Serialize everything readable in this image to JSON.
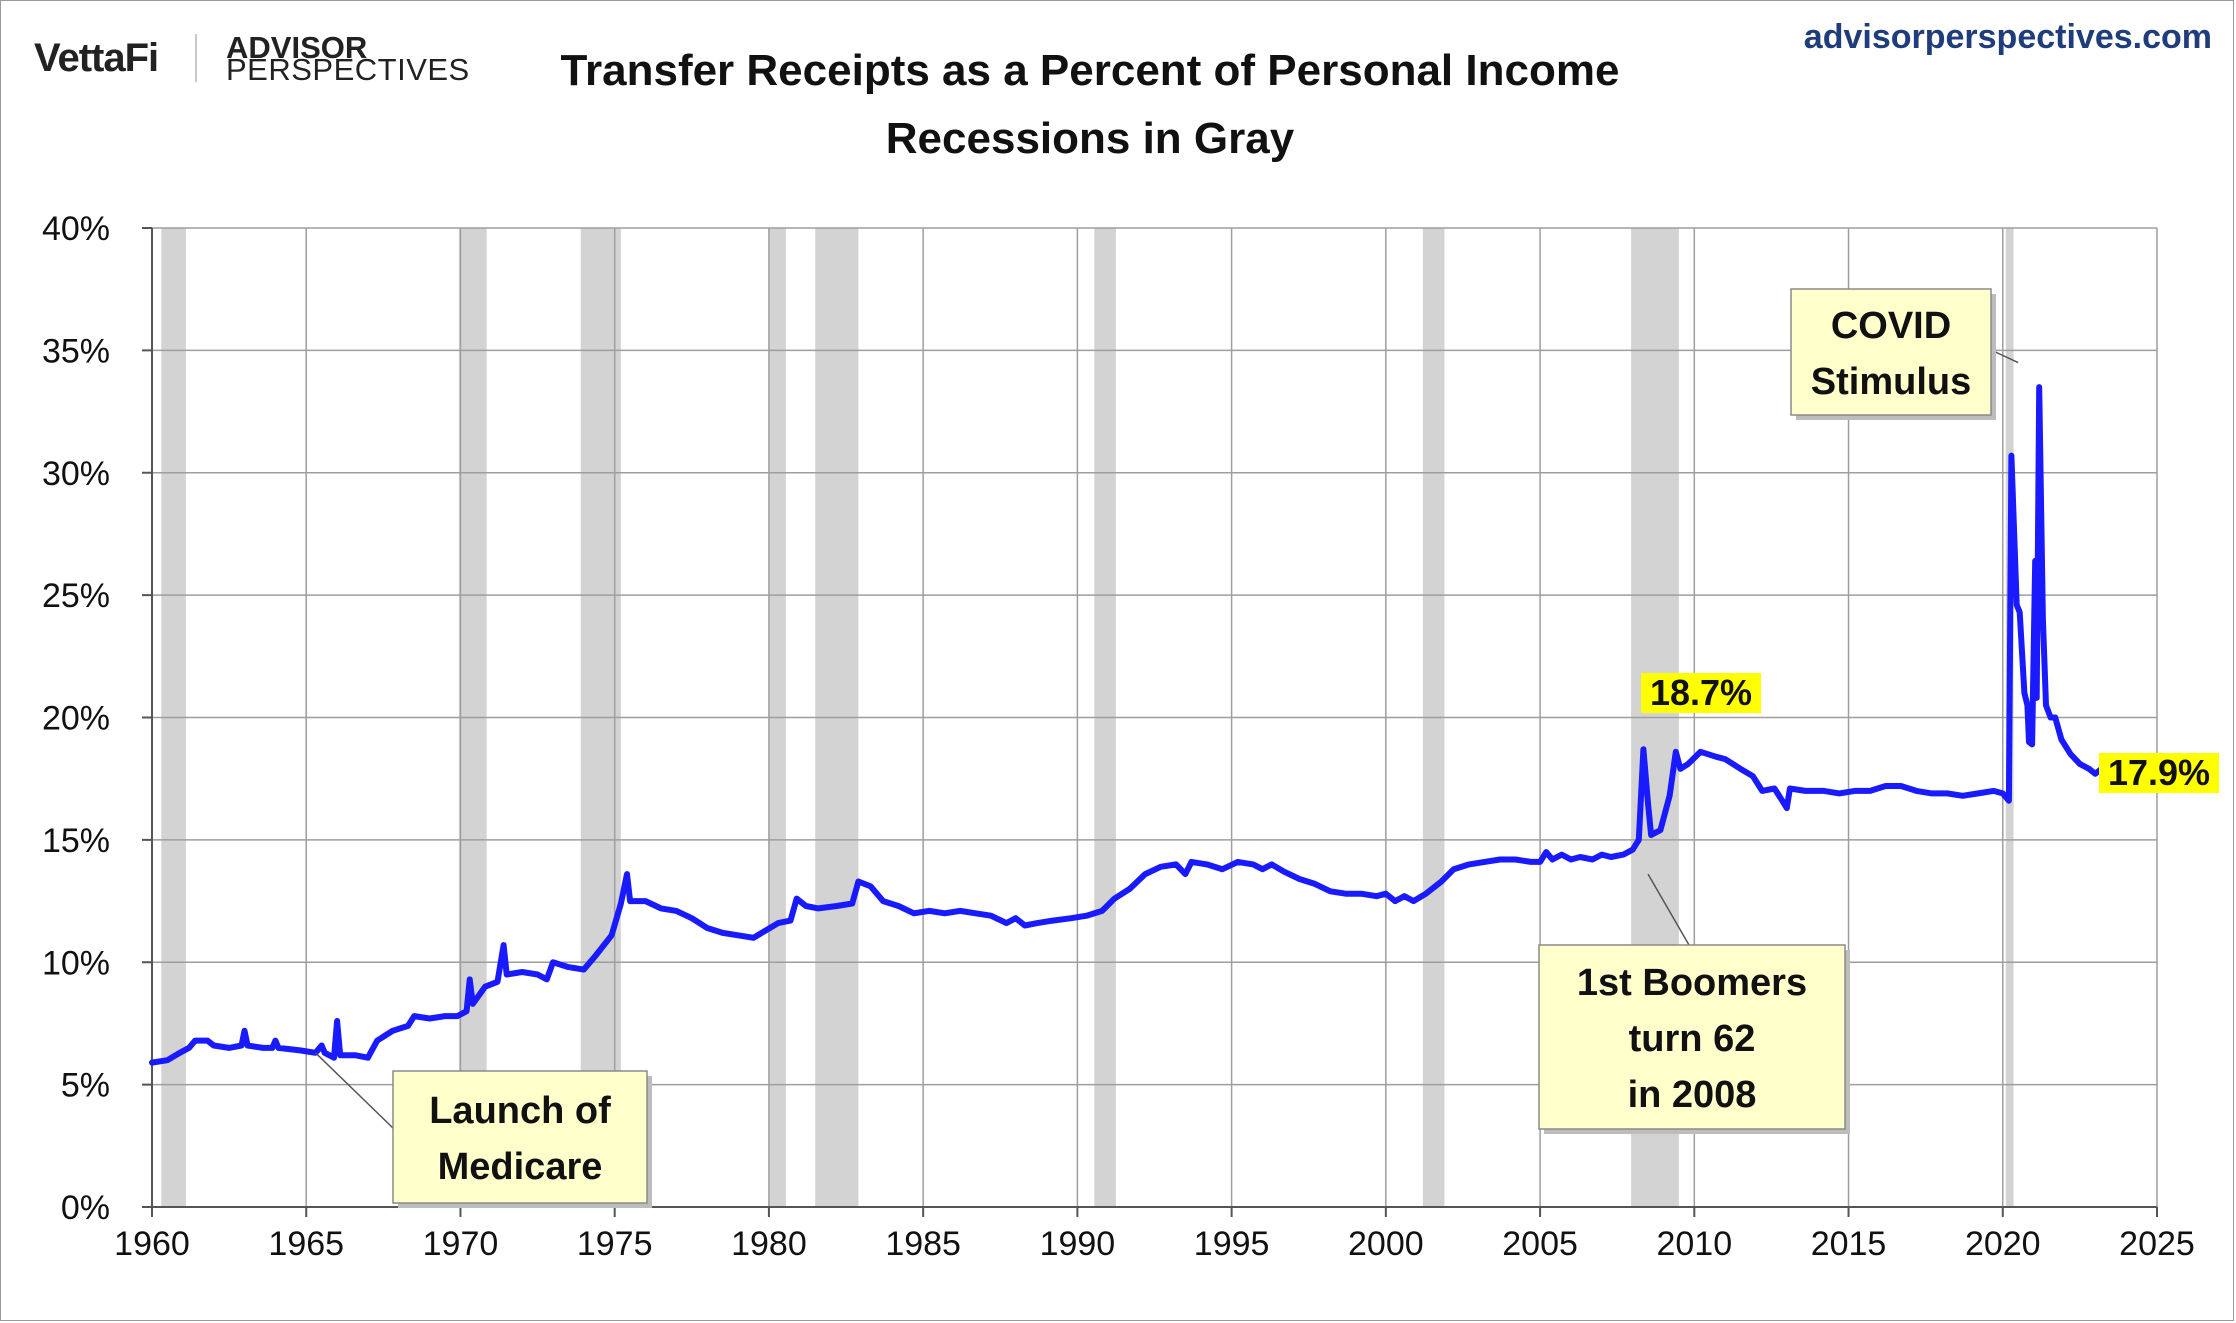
{
  "header": {
    "logo_left": "VettaFi",
    "logo_right_line1": "ADVISOR",
    "logo_right_line2": "PERSPECTIVES",
    "site_url": "advisorperspectives.com"
  },
  "chart_data": {
    "type": "line",
    "title": "Transfer Receipts as a Percent of Personal Income",
    "subtitle": "Recessions in Gray",
    "xlabel": "",
    "ylabel": "",
    "xlim": [
      1960,
      2025
    ],
    "ylim": [
      0,
      40
    ],
    "x_ticks": [
      1960,
      1965,
      1970,
      1975,
      1980,
      1985,
      1990,
      1995,
      2000,
      2005,
      2010,
      2015,
      2020,
      2025
    ],
    "x_tick_labels": [
      "1960",
      "1965",
      "1970",
      "1975",
      "1980",
      "1985",
      "1990",
      "1995",
      "2000",
      "2005",
      "2010",
      "2015",
      "2020",
      "2025"
    ],
    "y_ticks": [
      0,
      5,
      10,
      15,
      20,
      25,
      30,
      35,
      40
    ],
    "y_tick_labels": [
      "0%",
      "5%",
      "10%",
      "15%",
      "20%",
      "25%",
      "30%",
      "35%",
      "40%"
    ],
    "grid": true,
    "line_color": "#1a1aff",
    "recession_color": "#d3d3d3",
    "recessions": [
      [
        1960.3,
        1961.1
      ],
      [
        1969.95,
        1970.85
      ],
      [
        1973.9,
        1975.2
      ],
      [
        1980.0,
        1980.55
      ],
      [
        1981.5,
        1982.9
      ],
      [
        1990.55,
        1991.25
      ],
      [
        2001.2,
        2001.9
      ],
      [
        2007.95,
        2009.5
      ],
      [
        2020.1,
        2020.35
      ]
    ],
    "series": [
      {
        "values": [
          [
            1960.0,
            5.9
          ],
          [
            1960.5,
            6.0
          ],
          [
            1960.9,
            6.3
          ],
          [
            1961.2,
            6.5
          ],
          [
            1961.4,
            6.8
          ],
          [
            1961.8,
            6.8
          ],
          [
            1962.0,
            6.6
          ],
          [
            1962.5,
            6.5
          ],
          [
            1962.9,
            6.6
          ],
          [
            1963.0,
            7.2
          ],
          [
            1963.1,
            6.6
          ],
          [
            1963.6,
            6.5
          ],
          [
            1963.9,
            6.5
          ],
          [
            1964.0,
            6.8
          ],
          [
            1964.1,
            6.5
          ],
          [
            1964.8,
            6.4
          ],
          [
            1965.3,
            6.3
          ],
          [
            1965.5,
            6.6
          ],
          [
            1965.6,
            6.3
          ],
          [
            1965.9,
            6.1
          ],
          [
            1966.0,
            7.6
          ],
          [
            1966.1,
            6.2
          ],
          [
            1966.6,
            6.2
          ],
          [
            1967.0,
            6.1
          ],
          [
            1967.3,
            6.8
          ],
          [
            1967.8,
            7.2
          ],
          [
            1968.3,
            7.4
          ],
          [
            1968.5,
            7.8
          ],
          [
            1969.0,
            7.7
          ],
          [
            1969.5,
            7.8
          ],
          [
            1969.9,
            7.8
          ],
          [
            1970.2,
            8.0
          ],
          [
            1970.3,
            9.3
          ],
          [
            1970.4,
            8.3
          ],
          [
            1970.8,
            9.0
          ],
          [
            1971.2,
            9.2
          ],
          [
            1971.4,
            10.7
          ],
          [
            1971.5,
            9.5
          ],
          [
            1972.0,
            9.6
          ],
          [
            1972.5,
            9.5
          ],
          [
            1972.8,
            9.3
          ],
          [
            1973.0,
            10.0
          ],
          [
            1973.5,
            9.8
          ],
          [
            1974.0,
            9.7
          ],
          [
            1974.4,
            10.3
          ],
          [
            1974.9,
            11.1
          ],
          [
            1975.2,
            12.4
          ],
          [
            1975.4,
            13.6
          ],
          [
            1975.5,
            12.5
          ],
          [
            1976.0,
            12.5
          ],
          [
            1976.5,
            12.2
          ],
          [
            1977.0,
            12.1
          ],
          [
            1977.5,
            11.8
          ],
          [
            1978.0,
            11.4
          ],
          [
            1978.5,
            11.2
          ],
          [
            1979.0,
            11.1
          ],
          [
            1979.5,
            11.0
          ],
          [
            1979.9,
            11.3
          ],
          [
            1980.3,
            11.6
          ],
          [
            1980.7,
            11.7
          ],
          [
            1980.9,
            12.6
          ],
          [
            1981.2,
            12.3
          ],
          [
            1981.6,
            12.2
          ],
          [
            1982.2,
            12.3
          ],
          [
            1982.7,
            12.4
          ],
          [
            1982.9,
            13.3
          ],
          [
            1983.3,
            13.1
          ],
          [
            1983.7,
            12.5
          ],
          [
            1984.2,
            12.3
          ],
          [
            1984.7,
            12.0
          ],
          [
            1985.2,
            12.1
          ],
          [
            1985.7,
            12.0
          ],
          [
            1986.2,
            12.1
          ],
          [
            1986.7,
            12.0
          ],
          [
            1987.2,
            11.9
          ],
          [
            1987.7,
            11.6
          ],
          [
            1988.0,
            11.8
          ],
          [
            1988.3,
            11.5
          ],
          [
            1988.7,
            11.6
          ],
          [
            1989.2,
            11.7
          ],
          [
            1989.8,
            11.8
          ],
          [
            1990.3,
            11.9
          ],
          [
            1990.8,
            12.1
          ],
          [
            1991.2,
            12.6
          ],
          [
            1991.7,
            13.0
          ],
          [
            1992.2,
            13.6
          ],
          [
            1992.7,
            13.9
          ],
          [
            1993.2,
            14.0
          ],
          [
            1993.5,
            13.6
          ],
          [
            1993.7,
            14.1
          ],
          [
            1994.2,
            14.0
          ],
          [
            1994.7,
            13.8
          ],
          [
            1995.2,
            14.1
          ],
          [
            1995.7,
            14.0
          ],
          [
            1996.0,
            13.8
          ],
          [
            1996.3,
            14.0
          ],
          [
            1996.7,
            13.7
          ],
          [
            1997.2,
            13.4
          ],
          [
            1997.7,
            13.2
          ],
          [
            1998.2,
            12.9
          ],
          [
            1998.7,
            12.8
          ],
          [
            1999.2,
            12.8
          ],
          [
            1999.7,
            12.7
          ],
          [
            2000.0,
            12.8
          ],
          [
            2000.3,
            12.5
          ],
          [
            2000.6,
            12.7
          ],
          [
            2000.9,
            12.5
          ],
          [
            2001.3,
            12.8
          ],
          [
            2001.8,
            13.3
          ],
          [
            2002.2,
            13.8
          ],
          [
            2002.7,
            14.0
          ],
          [
            2003.2,
            14.1
          ],
          [
            2003.7,
            14.2
          ],
          [
            2004.2,
            14.2
          ],
          [
            2004.7,
            14.1
          ],
          [
            2005.0,
            14.1
          ],
          [
            2005.2,
            14.5
          ],
          [
            2005.4,
            14.2
          ],
          [
            2005.7,
            14.4
          ],
          [
            2006.0,
            14.2
          ],
          [
            2006.3,
            14.3
          ],
          [
            2006.7,
            14.2
          ],
          [
            2007.0,
            14.4
          ],
          [
            2007.3,
            14.3
          ],
          [
            2007.7,
            14.4
          ],
          [
            2008.0,
            14.6
          ],
          [
            2008.2,
            15.0
          ],
          [
            2008.35,
            18.7
          ],
          [
            2008.5,
            16.5
          ],
          [
            2008.6,
            15.2
          ],
          [
            2008.9,
            15.4
          ],
          [
            2009.2,
            16.8
          ],
          [
            2009.4,
            18.6
          ],
          [
            2009.55,
            17.9
          ],
          [
            2009.8,
            18.1
          ],
          [
            2010.2,
            18.6
          ],
          [
            2010.7,
            18.4
          ],
          [
            2011.0,
            18.3
          ],
          [
            2011.5,
            17.9
          ],
          [
            2011.9,
            17.6
          ],
          [
            2012.2,
            17.0
          ],
          [
            2012.6,
            17.1
          ],
          [
            2012.9,
            16.5
          ],
          [
            2013.0,
            16.3
          ],
          [
            2013.1,
            17.1
          ],
          [
            2013.6,
            17.0
          ],
          [
            2014.2,
            17.0
          ],
          [
            2014.7,
            16.9
          ],
          [
            2015.2,
            17.0
          ],
          [
            2015.7,
            17.0
          ],
          [
            2016.2,
            17.2
          ],
          [
            2016.7,
            17.2
          ],
          [
            2017.2,
            17.0
          ],
          [
            2017.7,
            16.9
          ],
          [
            2018.2,
            16.9
          ],
          [
            2018.7,
            16.8
          ],
          [
            2019.2,
            16.9
          ],
          [
            2019.7,
            17.0
          ],
          [
            2020.0,
            16.9
          ],
          [
            2020.2,
            16.6
          ],
          [
            2020.28,
            30.7
          ],
          [
            2020.45,
            24.6
          ],
          [
            2020.55,
            24.3
          ],
          [
            2020.7,
            21.0
          ],
          [
            2020.8,
            20.5
          ],
          [
            2020.85,
            19.0
          ],
          [
            2020.95,
            18.9
          ],
          [
            2021.05,
            26.4
          ],
          [
            2021.1,
            20.8
          ],
          [
            2021.18,
            33.5
          ],
          [
            2021.3,
            24.0
          ],
          [
            2021.4,
            20.5
          ],
          [
            2021.55,
            20.0
          ],
          [
            2021.7,
            20.0
          ],
          [
            2021.9,
            19.1
          ],
          [
            2022.2,
            18.5
          ],
          [
            2022.5,
            18.1
          ],
          [
            2022.8,
            17.9
          ],
          [
            2023.0,
            17.7
          ],
          [
            2023.2,
            17.9
          ]
        ]
      }
    ],
    "annotations": [
      {
        "text_lines": [
          "Launch of",
          "Medicare"
        ],
        "point_x": 1965.3,
        "point_y": 6.3
      },
      {
        "text_lines": [
          "1st Boomers",
          "turn 62",
          "in 2008"
        ],
        "point_x": 2008.5,
        "point_y": 13.6
      },
      {
        "text_lines": [
          "COVID",
          "Stimulus"
        ],
        "point_x": 2020.5,
        "point_y": 34.5
      }
    ],
    "value_labels": [
      {
        "text": "18.7%",
        "x": 2008.35,
        "y": 18.7
      },
      {
        "text": "17.9%",
        "x": 2023.2,
        "y": 17.9
      }
    ]
  }
}
